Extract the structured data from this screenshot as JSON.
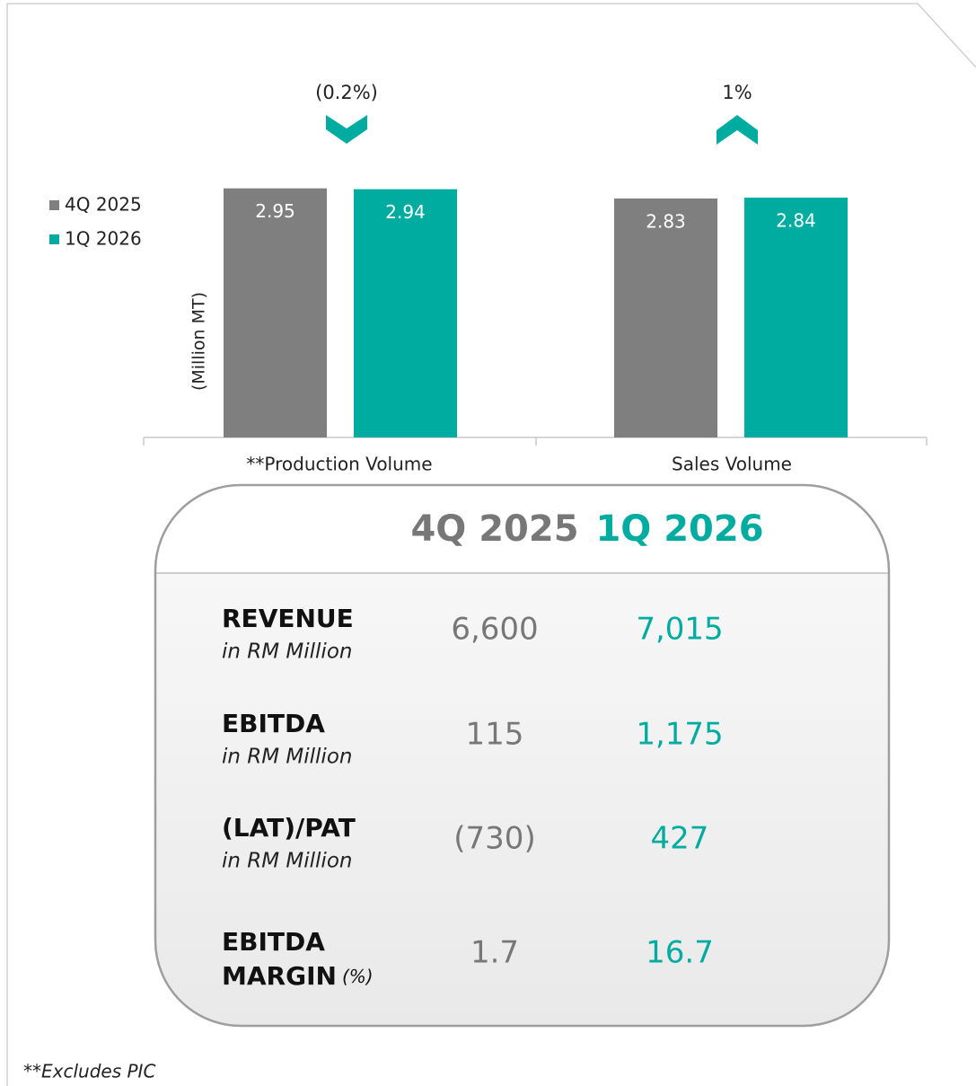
{
  "chart_data": {
    "type": "bar",
    "y_axis_label": "(Million MT)",
    "categories": [
      "**Production Volume",
      "Sales Volume"
    ],
    "series": [
      {
        "name": "4Q 2025",
        "color": "#7f7f7f",
        "values": [
          2.95,
          2.83
        ]
      },
      {
        "name": "1Q 2026",
        "color": "#00aca0",
        "values": [
          2.94,
          2.84
        ]
      }
    ],
    "ylim": [
      0,
      3
    ],
    "changes": [
      {
        "label": "(0.2%)",
        "direction": "down"
      },
      {
        "label": "1%",
        "direction": "up"
      }
    ],
    "legend": "left"
  },
  "table": {
    "headers": [
      "4Q 2025",
      "1Q 2026"
    ],
    "rows": [
      {
        "title": "REVENUE",
        "subtitle": "in RM Million",
        "values": [
          "6,600",
          "7,015"
        ]
      },
      {
        "title": "EBITDA",
        "subtitle": "in RM Million",
        "values": [
          "115",
          "1,175"
        ]
      },
      {
        "title": "(LAT)/PAT",
        "subtitle": "in RM Million",
        "values": [
          "(730)",
          "427"
        ]
      },
      {
        "title": "EBITDA",
        "title2": "MARGIN",
        "unit": "(%)",
        "values": [
          "1.7",
          "16.7"
        ]
      }
    ]
  },
  "footnote": "**Excludes PIC"
}
